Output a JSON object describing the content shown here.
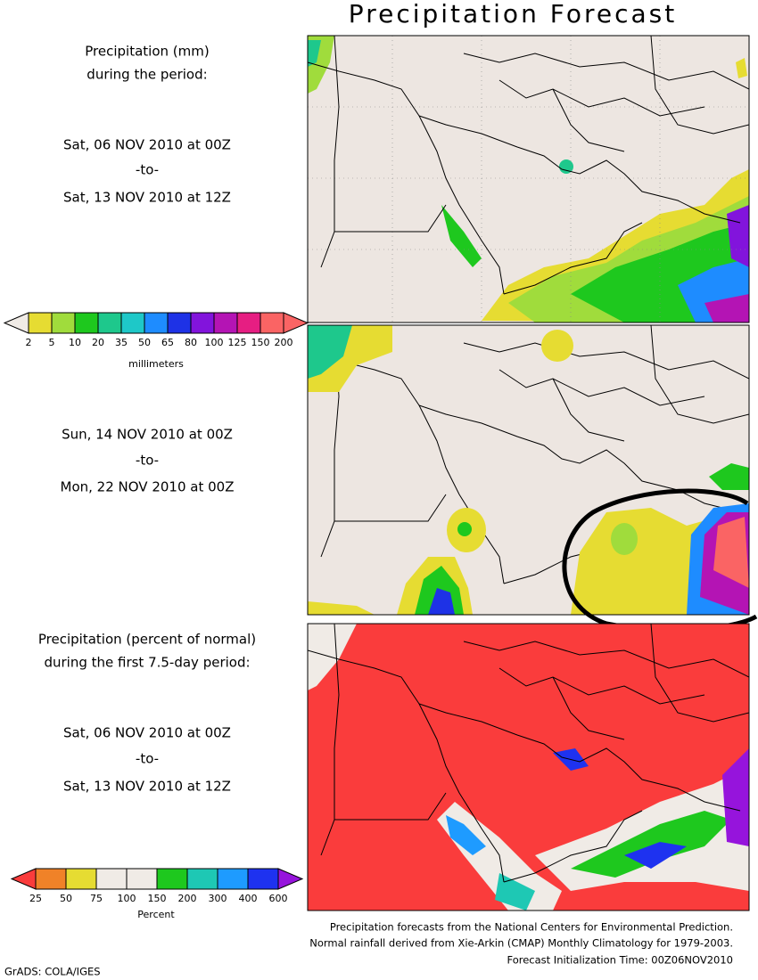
{
  "header": {
    "title": "Precipitation Forecast"
  },
  "panel1": {
    "heading": [
      "Precipitation (mm)",
      "during the period:"
    ],
    "period": [
      "Sat, 06 NOV 2010 at 00Z",
      "-to-",
      "Sat, 13 NOV 2010 at 12Z"
    ]
  },
  "legend_mm": {
    "labels": [
      "2",
      "5",
      "10",
      "20",
      "35",
      "50",
      "65",
      "80",
      "100",
      "125",
      "150",
      "200"
    ],
    "unit": "millimeters",
    "colors": [
      "#f0ebe6",
      "#e6dc32",
      "#a0dc3c",
      "#1ec81e",
      "#1ec88c",
      "#1ec8c8",
      "#1e8cff",
      "#1e32e6",
      "#8214dc",
      "#b414b4",
      "#e61e82",
      "#fa6464"
    ]
  },
  "panel2": {
    "period": [
      "Sun, 14 NOV 2010 at 00Z",
      "-to-",
      "Mon, 22 NOV 2010 at 00Z"
    ]
  },
  "panel3": {
    "heading": [
      "Precipitation (percent of normal)",
      "during the first 7.5-day period:"
    ],
    "period": [
      "Sat, 06 NOV 2010 at 00Z",
      "-to-",
      "Sat, 13 NOV 2010 at 12Z"
    ]
  },
  "legend_pct": {
    "labels": [
      "25",
      "50",
      "75",
      "100",
      "150",
      "200",
      "300",
      "400",
      "600"
    ],
    "unit": "Percent",
    "colors": [
      "#fa3c3c",
      "#f08228",
      "#e6dc32",
      "#f0ebe6",
      "#f0ebe6",
      "#1ec81e",
      "#1ec8b4",
      "#1e9bff",
      "#1e32f0",
      "#9614dc"
    ]
  },
  "footer": {
    "lines": [
      "Precipitation forecasts from the National Centers for Environmental Prediction.",
      "Normal rainfall derived from Xie-Arkin (CMAP) Monthly Climatology for 1979-2003.",
      "Forecast Initialization Time: 00Z06NOV2010"
    ],
    "credit": "GrADS: COLA/IGES"
  }
}
